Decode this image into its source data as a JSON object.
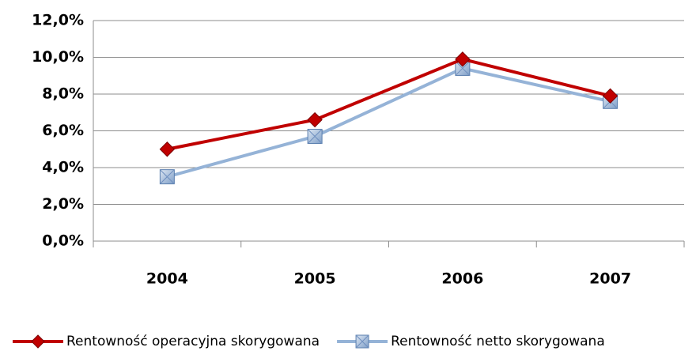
{
  "chart_data": {
    "type": "line",
    "categories": [
      "2004",
      "2005",
      "2006",
      "2007"
    ],
    "series": [
      {
        "name": "Rentowność operacyjna skorygowana",
        "color": "#c00000",
        "marker": "diamond",
        "values": [
          5.0,
          6.6,
          9.9,
          7.9
        ]
      },
      {
        "name": "Rentowność netto skorygowana",
        "color": "#95b3d7",
        "marker": "square",
        "values": [
          3.5,
          5.7,
          9.4,
          7.6
        ]
      }
    ],
    "ylim": [
      0,
      12
    ],
    "yticks": [
      {
        "value": 0,
        "label": "0,0%"
      },
      {
        "value": 2,
        "label": "2,0%"
      },
      {
        "value": 4,
        "label": "4,0%"
      },
      {
        "value": 6,
        "label": "6,0%"
      },
      {
        "value": 8,
        "label": "8,0%"
      },
      {
        "value": 10,
        "label": "10,0%"
      },
      {
        "value": 12,
        "label": "12,0%"
      }
    ],
    "grid": true,
    "legend": "bottom"
  }
}
